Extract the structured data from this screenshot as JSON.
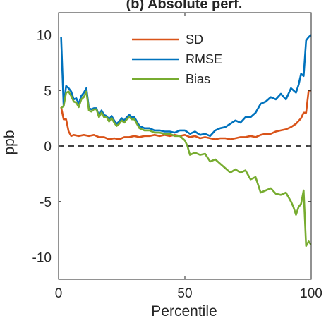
{
  "chart_data": {
    "type": "line",
    "title": "(b) Absolute perf.",
    "xlabel": "Percentile",
    "ylabel": "ppb",
    "xlim": [
      0,
      100
    ],
    "ylim": [
      -12,
      12
    ],
    "xticks": [
      0,
      50,
      100
    ],
    "xtick_labels": [
      "0",
      "50",
      "100"
    ],
    "yticks": [
      10,
      5,
      0,
      -5,
      -10
    ],
    "ytick_labels": [
      "10",
      "5",
      "0",
      "-5",
      "-10"
    ],
    "grid": false,
    "legend_position": "top-center",
    "reference_line": {
      "y": 0,
      "style": "dashed",
      "color": "#000000"
    },
    "series": [
      {
        "name": "SD",
        "color": "#D95319",
        "x": [
          1,
          2,
          3,
          4,
          5,
          6,
          8,
          10,
          12,
          14,
          16,
          18,
          20,
          22,
          24,
          26,
          28,
          30,
          32,
          34,
          36,
          38,
          40,
          42,
          44,
          46,
          48,
          50,
          52,
          54,
          56,
          58,
          60,
          62,
          64,
          66,
          68,
          70,
          72,
          74,
          76,
          78,
          80,
          82,
          84,
          86,
          88,
          90,
          92,
          94,
          96,
          97,
          98,
          99,
          100
        ],
        "y": [
          3.5,
          2.4,
          2.4,
          1.3,
          0.9,
          1.0,
          0.9,
          1.0,
          0.9,
          1.0,
          0.8,
          0.8,
          0.6,
          0.7,
          0.6,
          0.8,
          0.8,
          0.9,
          0.8,
          0.9,
          0.9,
          1.0,
          0.9,
          1.0,
          0.9,
          1.0,
          0.9,
          1.0,
          0.8,
          0.9,
          0.7,
          0.8,
          0.7,
          0.6,
          0.7,
          0.7,
          0.6,
          0.7,
          0.8,
          0.8,
          0.9,
          0.8,
          1.0,
          1.1,
          1.1,
          1.3,
          1.4,
          1.5,
          1.7,
          2.0,
          2.5,
          3.0,
          3.0,
          5.0,
          5.0
        ]
      },
      {
        "name": "RMSE",
        "color": "#0072BD",
        "x": [
          1,
          2,
          3,
          4,
          5,
          6,
          7,
          8,
          9,
          10,
          11,
          12,
          13,
          14,
          15,
          16,
          17,
          18,
          19,
          20,
          21,
          22,
          23,
          24,
          25,
          26,
          27,
          28,
          29,
          30,
          32,
          34,
          36,
          38,
          40,
          42,
          44,
          46,
          48,
          50,
          52,
          54,
          56,
          58,
          60,
          62,
          64,
          66,
          68,
          70,
          72,
          74,
          76,
          78,
          80,
          82,
          84,
          86,
          88,
          90,
          92,
          94,
          95,
          96,
          97,
          98,
          99,
          100
        ],
        "y": [
          9.8,
          3.6,
          5.4,
          5.2,
          4.9,
          4.2,
          4.3,
          3.8,
          4.5,
          4.8,
          5.2,
          3.4,
          3.3,
          3.4,
          3.4,
          2.7,
          3.2,
          2.8,
          2.7,
          2.4,
          2.7,
          2.3,
          2.0,
          2.2,
          2.5,
          2.3,
          2.6,
          2.8,
          2.6,
          2.6,
          1.8,
          1.6,
          1.6,
          1.4,
          1.4,
          1.3,
          1.3,
          1.2,
          1.4,
          1.4,
          1.1,
          1.3,
          1.0,
          1.1,
          0.9,
          1.4,
          1.6,
          1.7,
          2.0,
          2.3,
          2.1,
          2.6,
          2.6,
          3.0,
          3.8,
          4.0,
          4.4,
          4.2,
          4.7,
          4.2,
          5.2,
          4.8,
          5.5,
          6.5,
          6.3,
          9.5,
          9.8,
          10.0
        ]
      },
      {
        "name": "Bias",
        "color": "#77AC30",
        "x": [
          1,
          2,
          3,
          4,
          5,
          6,
          7,
          8,
          9,
          10,
          11,
          12,
          13,
          14,
          15,
          16,
          17,
          18,
          19,
          20,
          21,
          22,
          23,
          24,
          25,
          26,
          27,
          28,
          29,
          30,
          32,
          34,
          36,
          38,
          40,
          42,
          44,
          46,
          48,
          50,
          51,
          52,
          54,
          56,
          58,
          60,
          62,
          64,
          66,
          68,
          70,
          72,
          74,
          76,
          78,
          80,
          82,
          84,
          86,
          88,
          90,
          92,
          93,
          94,
          95,
          96,
          97,
          98,
          99,
          100
        ],
        "y": [
          3.4,
          3.6,
          4.8,
          4.9,
          4.5,
          4.0,
          3.9,
          3.5,
          4.2,
          4.4,
          4.9,
          3.2,
          3.1,
          3.3,
          3.3,
          2.6,
          3.0,
          2.6,
          2.6,
          2.2,
          2.5,
          2.1,
          1.8,
          2.0,
          2.3,
          2.1,
          2.4,
          2.6,
          2.4,
          2.4,
          1.6,
          1.4,
          1.4,
          1.2,
          1.2,
          1.1,
          1.1,
          0.9,
          0.9,
          0.5,
          0.0,
          -0.8,
          -0.6,
          -0.8,
          -0.7,
          -1.4,
          -1.2,
          -1.6,
          -2.0,
          -2.4,
          -2.1,
          -2.4,
          -2.2,
          -3.0,
          -2.8,
          -4.2,
          -4.0,
          -3.8,
          -4.3,
          -4.4,
          -4.2,
          -5.0,
          -5.5,
          -6.2,
          -5.5,
          -5.2,
          -4.0,
          -9.0,
          -8.6,
          -8.9
        ]
      }
    ]
  }
}
